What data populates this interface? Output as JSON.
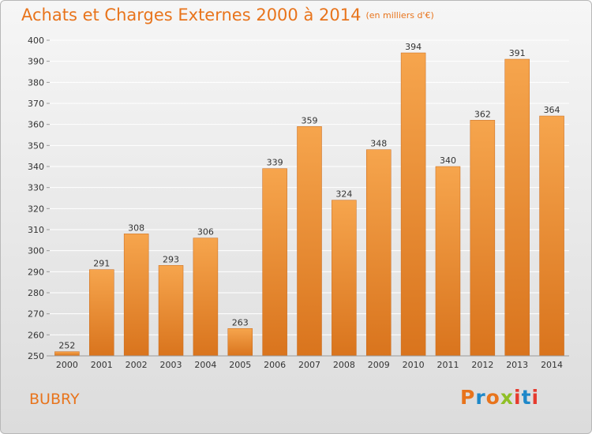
{
  "header": {
    "title": "Achats et Charges Externes 2000 à 2014",
    "subtitle": "(en milliers d'€)"
  },
  "footer": {
    "place": "BUBRY",
    "logo_text": "Proxiti"
  },
  "colors": {
    "accent": "#e8741c",
    "bar_top": "#f6a54d",
    "bar_bottom": "#d9741d",
    "logo_letters": [
      "#e8741c",
      "#1e88c9",
      "#e8741c",
      "#8fbf26",
      "#e63b2e",
      "#1e88c9",
      "#e63b2e"
    ]
  },
  "chart_data": {
    "type": "bar",
    "categories": [
      "2000",
      "2001",
      "2002",
      "2003",
      "2004",
      "2005",
      "2006",
      "2007",
      "2008",
      "2009",
      "2010",
      "2011",
      "2012",
      "2013",
      "2014"
    ],
    "values": [
      252,
      291,
      308,
      293,
      306,
      263,
      339,
      359,
      324,
      348,
      394,
      340,
      362,
      391,
      364
    ],
    "value_labels": [
      "252",
      "291",
      "308",
      "293",
      "306",
      "263",
      "339",
      "359",
      "324",
      "348",
      "394",
      "340",
      "362",
      "391",
      "364"
    ],
    "y_ticks": [
      250,
      260,
      270,
      280,
      290,
      300,
      310,
      320,
      330,
      340,
      350,
      360,
      370,
      380,
      390,
      400
    ],
    "ylim": [
      250,
      400
    ],
    "grid": "horizontal",
    "xlabel": "",
    "ylabel": ""
  }
}
